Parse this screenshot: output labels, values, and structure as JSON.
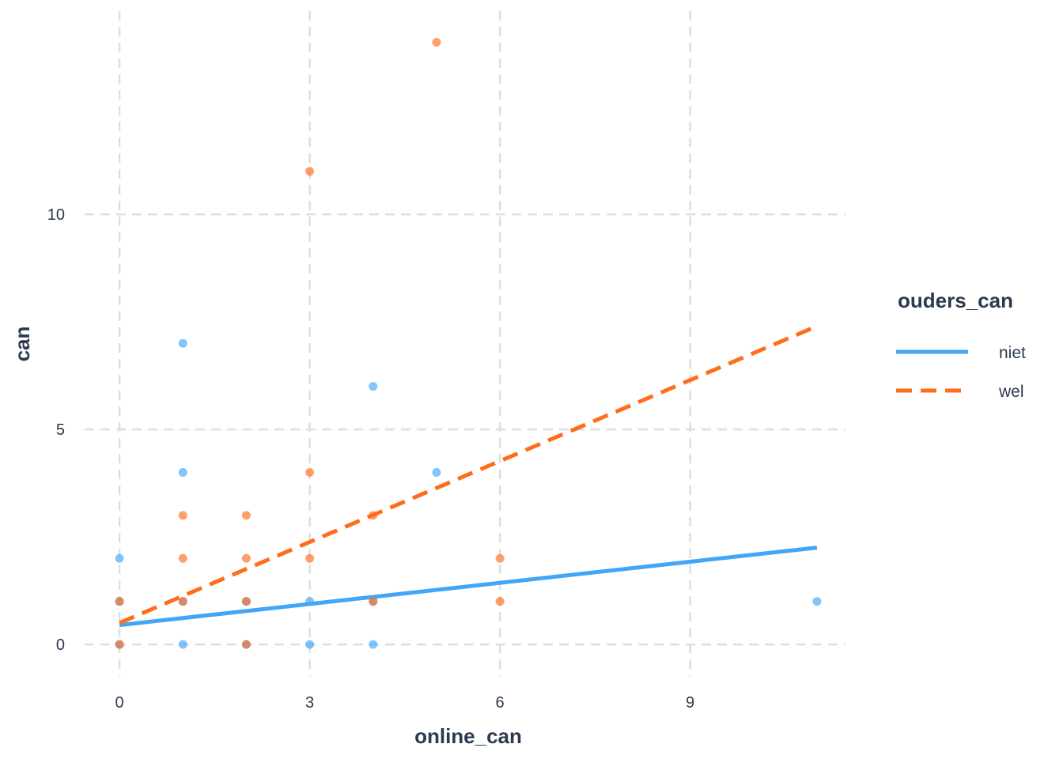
{
  "chart_data": {
    "type": "scatter",
    "xlabel": "online_can",
    "ylabel": "can",
    "xlim": [
      -0.55,
      11.45
    ],
    "ylim": [
      -0.55,
      14.45
    ],
    "x_ticks": [
      0,
      3,
      6,
      9
    ],
    "y_ticks": [
      0,
      5,
      10
    ],
    "x_tick_labels": [
      "0",
      "3",
      "6",
      "9"
    ],
    "y_tick_labels": [
      "0",
      "5",
      "10"
    ],
    "grid": true,
    "legend": {
      "title": "ouders_can",
      "placement": "right",
      "entries": [
        {
          "label": "niet",
          "color": "#42a5f5",
          "dash": "solid"
        },
        {
          "label": "wel",
          "color": "#ff6d1b",
          "dash": "dashed"
        }
      ]
    },
    "series": [
      {
        "name": "niet",
        "color": "#42a5f5",
        "points": [
          [
            0,
            0
          ],
          [
            0,
            1
          ],
          [
            0,
            2
          ],
          [
            1,
            0
          ],
          [
            1,
            1
          ],
          [
            1,
            4
          ],
          [
            1,
            7
          ],
          [
            2,
            0
          ],
          [
            2,
            1
          ],
          [
            3,
            0
          ],
          [
            3,
            1
          ],
          [
            4,
            0
          ],
          [
            4,
            1
          ],
          [
            4,
            6
          ],
          [
            5,
            4
          ],
          [
            11,
            1
          ]
        ],
        "fit": {
          "x": [
            0,
            11
          ],
          "y": [
            0.45,
            2.25
          ]
        }
      },
      {
        "name": "wel",
        "color": "#ff6d1b",
        "points": [
          [
            0,
            0
          ],
          [
            0,
            1
          ],
          [
            1,
            1
          ],
          [
            1,
            2
          ],
          [
            1,
            3
          ],
          [
            2,
            0
          ],
          [
            2,
            1
          ],
          [
            2,
            2
          ],
          [
            2,
            3
          ],
          [
            3,
            2
          ],
          [
            3,
            4
          ],
          [
            3,
            11
          ],
          [
            4,
            1
          ],
          [
            4,
            3
          ],
          [
            5,
            14
          ],
          [
            6,
            1
          ],
          [
            6,
            2
          ]
        ],
        "fit": {
          "x": [
            0,
            11
          ],
          "y": [
            0.5,
            7.4
          ]
        }
      }
    ]
  }
}
